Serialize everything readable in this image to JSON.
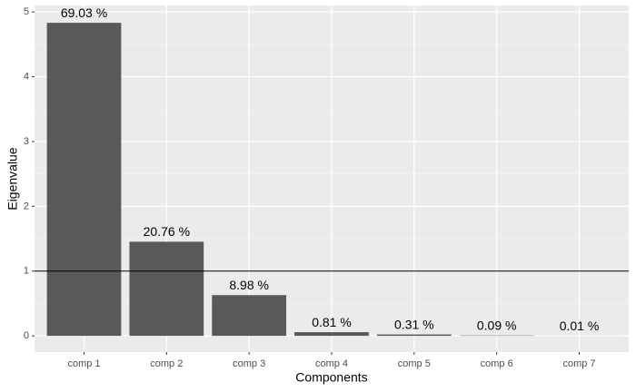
{
  "chart_data": {
    "type": "bar",
    "x_label": "Components",
    "y_label": "Eigenvalue",
    "categories": [
      "comp 1",
      "comp 2",
      "comp 3",
      "comp 4",
      "comp 5",
      "comp 6",
      "comp 7"
    ],
    "values": [
      4.832,
      1.453,
      0.629,
      0.057,
      0.022,
      0.006,
      0.0007
    ],
    "annotations": [
      "69.03  %",
      "20.76  %",
      "8.98  %",
      "0.81  %",
      "0.31  %",
      "0.09  %",
      "0.01  %"
    ],
    "color": "#595959",
    "hline": 1,
    "ylim": [
      -0.25,
      5.1
    ],
    "yticks": [
      0,
      1,
      2,
      3,
      4,
      5
    ],
    "grid": true
  }
}
